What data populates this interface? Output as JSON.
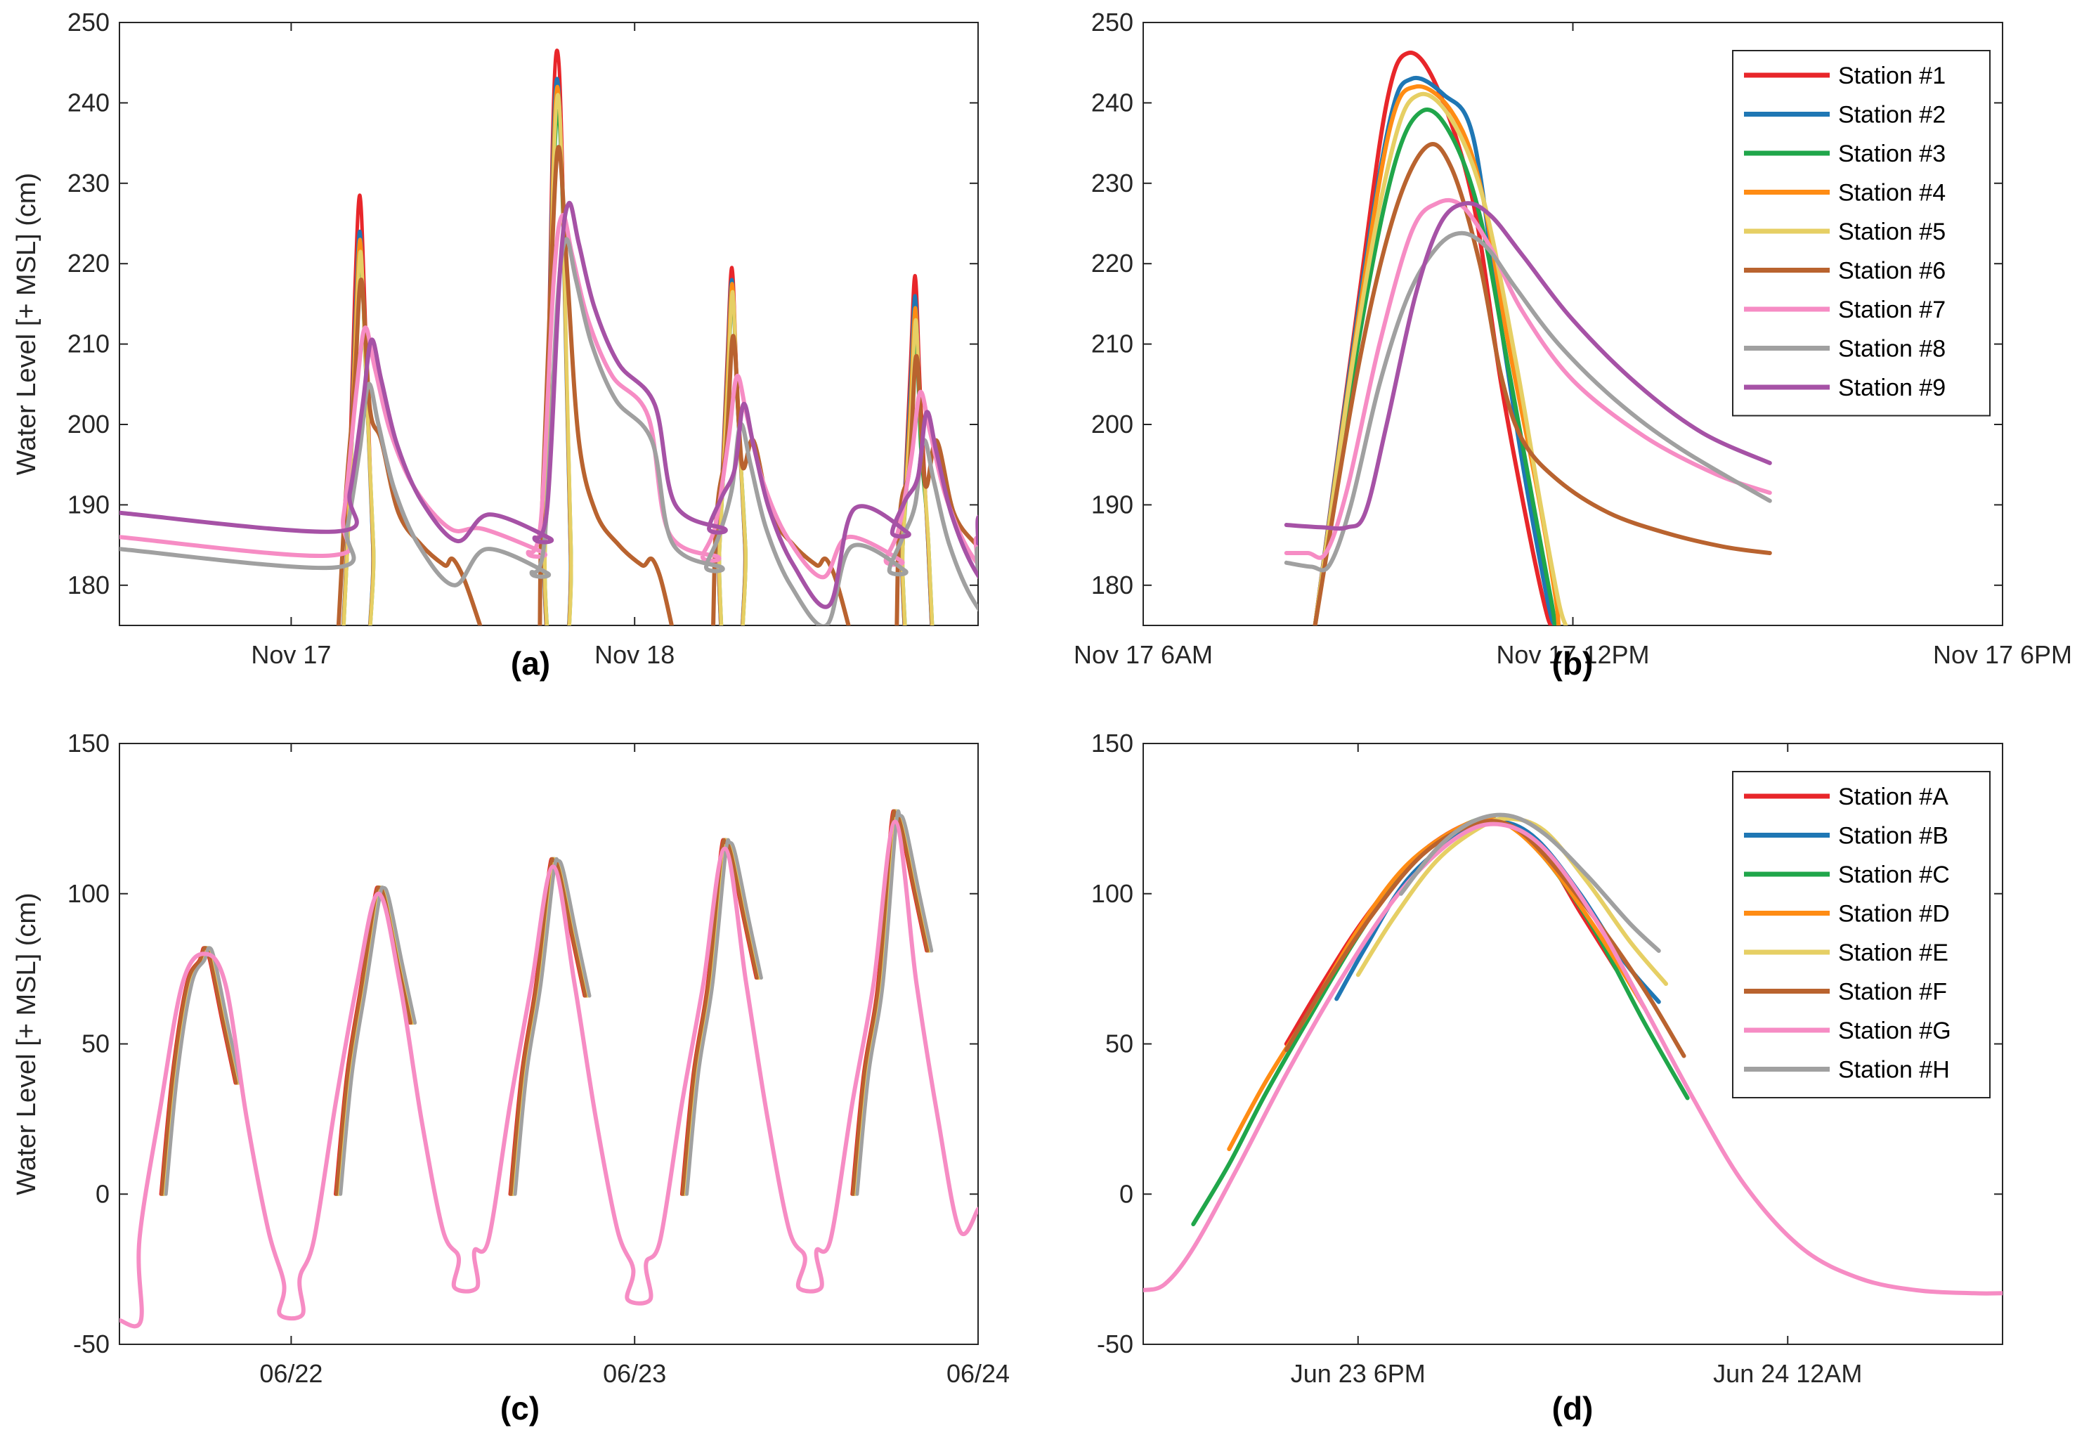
{
  "chart_data": [
    {
      "id": "a",
      "type": "line",
      "panel_label": "(a)",
      "ylabel": "Water Level [+ MSL] (cm)",
      "x_unit": "hours from Nov 17 00:00",
      "xlim": [
        -12,
        48
      ],
      "ylim": [
        175,
        250
      ],
      "yticks": [
        180,
        190,
        200,
        210,
        220,
        230,
        240,
        250
      ],
      "xticks": [
        {
          "value": 0,
          "label": "Nov 17"
        },
        {
          "value": 24,
          "label": "Nov 18"
        }
      ],
      "peaks": [
        {
          "t": 4.8,
          "values": [
            228.5,
            224,
            221,
            223,
            221.5,
            218,
            212,
            205,
            210.5
          ],
          "end": [
            null,
            183.8,
            183.8,
            183.8,
            183.8,
            181.5,
            184.0,
            181.5,
            185.8
          ]
        },
        {
          "t": 18.6,
          "values": [
            246.5,
            243,
            239,
            242,
            241,
            234.5,
            226,
            223,
            227.5
          ],
          "end": [
            null,
            182.8,
            182.8,
            182.8,
            182.8,
            181.2,
            183.5,
            182.2,
            187.0
          ]
        },
        {
          "t": 30.8,
          "values": [
            219.5,
            218,
            216,
            217.5,
            216.5,
            211,
            206,
            200,
            202.5
          ],
          "end": [
            null,
            182.0,
            182.0,
            182.0,
            182.0,
            181.0,
            183.0,
            181.8,
            186.5
          ]
        },
        {
          "t": 43.6,
          "values": [
            218.5,
            216,
            211,
            214.5,
            213,
            208.5,
            204,
            198,
            201.5
          ],
          "end": [
            null,
            181.5,
            181.5,
            181.5,
            181.5,
            181.3,
            182.8,
            181.3,
            185.2
          ]
        }
      ],
      "initial": [
        null,
        182.5,
        182.5,
        182.5,
        182.5,
        181.5,
        184.5,
        183.0,
        187.5
      ]
    },
    {
      "id": "b",
      "type": "line",
      "panel_label": "(b)",
      "x_unit": "hours from Nov 17 00:00",
      "xlim": [
        6,
        18
      ],
      "ylim": [
        175,
        250
      ],
      "yticks": [
        180,
        190,
        200,
        210,
        220,
        230,
        240,
        250
      ],
      "xticks": [
        {
          "value": 6,
          "label": "Nov 17  6AM"
        },
        {
          "value": 12,
          "label": "Nov 17 12PM"
        },
        {
          "value": 18,
          "label": "Nov 17  6PM"
        }
      ],
      "legend_position": "top-right",
      "series": [
        {
          "name": "Station #1",
          "color": "#e8262a",
          "x": [
            8.4,
            9.0,
            9.4,
            9.7,
            10.1,
            10.6,
            11.0,
            11.4,
            11.65,
            11.75
          ],
          "y": [
            175,
            215,
            240,
            246.2,
            242,
            228,
            205,
            186,
            176,
            175
          ]
        },
        {
          "name": "Station #2",
          "color": "#1f77b4",
          "x": [
            8.4,
            9.0,
            9.45,
            9.75,
            10.2,
            10.6,
            10.95,
            11.3,
            11.65,
            11.75
          ],
          "y": [
            175,
            214,
            238,
            243,
            241,
            236,
            215,
            195,
            178,
            175
          ]
        },
        {
          "name": "Station #3",
          "color": "#20a64a",
          "x": [
            8.4,
            9.0,
            9.5,
            9.9,
            10.3,
            10.7,
            11.1,
            11.45,
            11.7,
            11.75
          ],
          "y": [
            175,
            210,
            232,
            239,
            236,
            226,
            207,
            190,
            178,
            175
          ]
        },
        {
          "name": "Station #4",
          "color": "#ff8c14",
          "x": [
            8.4,
            9.0,
            9.45,
            9.8,
            10.3,
            10.7,
            11.1,
            11.5,
            11.75,
            11.8
          ],
          "y": [
            175,
            213,
            237,
            242,
            239,
            230,
            210,
            192,
            179,
            175
          ]
        },
        {
          "name": "Station #5",
          "color": "#e6cf64",
          "x": [
            8.4,
            9.0,
            9.5,
            9.85,
            10.3,
            10.75,
            11.2,
            11.55,
            11.8,
            11.9
          ],
          "y": [
            175,
            212,
            235,
            241,
            238,
            228,
            208,
            190,
            178,
            175
          ]
        },
        {
          "name": "Station #6",
          "color": "#b9632f",
          "x": [
            8.4,
            9.0,
            9.5,
            9.95,
            10.3,
            10.7,
            11.0,
            11.3,
            11.8,
            12.5,
            13.3,
            14.1,
            14.75
          ],
          "y": [
            175,
            207,
            226,
            234.5,
            232,
            220,
            206,
            198,
            193,
            189,
            186.5,
            184.8,
            184
          ]
        },
        {
          "name": "Station #7",
          "color": "#f68cc4",
          "x": [
            8.0,
            8.3,
            8.55,
            8.85,
            9.3,
            9.75,
            10.1,
            10.45,
            10.85,
            11.3,
            12.0,
            13.0,
            14.0,
            14.75
          ],
          "y": [
            184,
            184,
            184,
            192,
            210,
            224,
            227.5,
            227.2,
            222,
            214,
            205.5,
            198.5,
            193.8,
            191.5
          ]
        },
        {
          "name": "Station #8",
          "color": "#a0a0a0",
          "x": [
            8.0,
            8.35,
            8.6,
            8.9,
            9.3,
            9.7,
            10.1,
            10.45,
            10.8,
            11.2,
            11.8,
            12.6,
            13.5,
            14.75
          ],
          "y": [
            182.8,
            182.3,
            182.5,
            190,
            205,
            216,
            222,
            223.8,
            222,
            217,
            210,
            203,
            197,
            190.5
          ]
        },
        {
          "name": "Station #9",
          "color": "#a652a6",
          "x": [
            8.0,
            8.5,
            8.85,
            9.1,
            9.4,
            9.8,
            10.15,
            10.5,
            10.85,
            11.3,
            12.0,
            12.9,
            13.8,
            14.75
          ],
          "y": [
            187.5,
            187.2,
            187.2,
            189,
            200,
            216,
            225,
            227.5,
            226,
            221,
            213,
            205,
            199,
            195.2
          ]
        }
      ]
    },
    {
      "id": "c",
      "type": "line",
      "panel_label": "(c)",
      "ylabel": "Water Level [+ MSL] (cm)",
      "x_unit": "hours from 06/22 00:00",
      "xlim": [
        -12,
        48
      ],
      "ylim": [
        -50,
        150
      ],
      "yticks": [
        -50,
        0,
        50,
        100,
        150
      ],
      "xticks": [
        {
          "value": 0,
          "label": "06/22"
        },
        {
          "value": 24,
          "label": "06/23"
        },
        {
          "value": 48,
          "label": "06/24"
        }
      ],
      "cycles": [
        {
          "t": -6.1,
          "peak": 82,
          "low_after": -40
        },
        {
          "t": 6.1,
          "peak": 102,
          "low_after": -31
        },
        {
          "t": 18.3,
          "peak": 111,
          "low_after": -35
        },
        {
          "t": 30.3,
          "peak": 117,
          "low_after": -31
        },
        {
          "t": 42.2,
          "peak": 126,
          "low_after": null
        }
      ],
      "initial_low": -42
    },
    {
      "id": "d",
      "type": "line",
      "panel_label": "(d)",
      "x_unit": "hours from Jun 23 00:00",
      "xlim": [
        15,
        27
      ],
      "ylim": [
        -50,
        150
      ],
      "yticks": [
        -50,
        0,
        50,
        100,
        150
      ],
      "xticks": [
        {
          "value": 18,
          "label": "Jun 23  6PM"
        },
        {
          "value": 24,
          "label": "Jun 24 12AM"
        }
      ],
      "legend_position": "top-right",
      "series": [
        {
          "name": "Station #A",
          "color": "#e8262a",
          "x": [
            17.0,
            17.5,
            18.1,
            18.8,
            19.5,
            20.0,
            20.6,
            21.1,
            21.6
          ],
          "y": [
            50,
            70,
            92,
            112,
            123,
            124,
            113,
            94,
            75
          ]
        },
        {
          "name": "Station #B",
          "color": "#1f77b4",
          "x": [
            17.7,
            18.1,
            18.7,
            19.5,
            20.0,
            20.5,
            21.1,
            21.7,
            22.2
          ],
          "y": [
            65,
            82,
            105,
            121,
            124,
            118,
            100,
            78,
            64
          ]
        },
        {
          "name": "Station #C",
          "color": "#20a64a",
          "x": [
            15.7,
            16.2,
            16.7,
            17.3,
            18.0,
            18.7,
            19.5,
            20.0,
            20.6,
            21.3,
            22.0,
            22.6
          ],
          "y": [
            -10,
            10,
            33,
            58,
            86,
            109,
            123,
            124,
            112,
            88,
            57,
            32
          ]
        },
        {
          "name": "Station #D",
          "color": "#ff8c14",
          "x": [
            16.2,
            16.7,
            17.3,
            18.0,
            18.7,
            19.5,
            20.0,
            20.6,
            21.3,
            22.0
          ],
          "y": [
            15,
            37,
            60,
            88,
            110,
            123,
            124,
            112,
            89,
            62
          ]
        },
        {
          "name": "Station #E",
          "color": "#e6cf64",
          "x": [
            18.0,
            18.5,
            19.1,
            19.7,
            20.1,
            20.6,
            21.2,
            21.8,
            22.3
          ],
          "y": [
            73,
            92,
            111,
            122,
            125,
            121,
            104,
            84,
            70
          ]
        },
        {
          "name": "Station #F",
          "color": "#b9632f",
          "x": [
            17.0,
            17.5,
            18.2,
            18.9,
            19.6,
            20.1,
            20.6,
            21.3,
            22.0,
            22.55
          ],
          "y": [
            48,
            68,
            93,
            113,
            123,
            123,
            113,
            92,
            68,
            46
          ]
        },
        {
          "name": "Station #G",
          "color": "#f68cc4",
          "x": [
            15.0,
            15.3,
            15.7,
            16.3,
            17.0,
            17.8,
            18.6,
            19.4,
            20.0,
            20.6,
            21.3,
            22.0,
            22.7,
            23.4,
            24.2,
            25.0,
            25.8,
            26.6,
            27.0
          ],
          "y": [
            -32,
            -30,
            -18,
            8,
            40,
            73,
            101,
            119,
            123,
            115,
            92,
            62,
            31,
            3,
            -18,
            -28,
            -32,
            -33,
            -33
          ]
        },
        {
          "name": "Station #H",
          "color": "#a0a0a0",
          "x": [
            18.6,
            19.1,
            19.6,
            20.1,
            20.6,
            21.2,
            21.8,
            22.2
          ],
          "y": [
            100,
            115,
            124,
            126,
            120,
            106,
            90,
            81
          ]
        }
      ]
    }
  ],
  "station_colors": [
    "#e8262a",
    "#1f77b4",
    "#20a64a",
    "#ff8c14",
    "#e6cf64",
    "#b9632f",
    "#f68cc4",
    "#a0a0a0",
    "#a652a6"
  ],
  "station_names_a": [
    "Station #1",
    "Station #2",
    "Station #3",
    "Station #4",
    "Station #5",
    "Station #6",
    "Station #7",
    "Station #8",
    "Station #9"
  ],
  "station_names_c": [
    "Station #A",
    "Station #B",
    "Station #C",
    "Station #D",
    "Station #E",
    "Station #F",
    "Station #G",
    "Station #H"
  ]
}
